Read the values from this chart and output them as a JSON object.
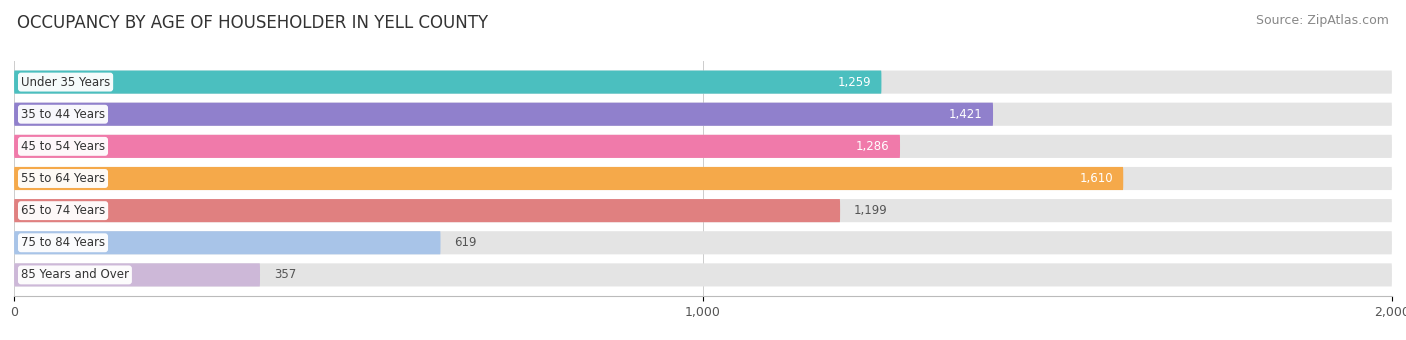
{
  "title": "OCCUPANCY BY AGE OF HOUSEHOLDER IN YELL COUNTY",
  "source": "Source: ZipAtlas.com",
  "categories": [
    "Under 35 Years",
    "35 to 44 Years",
    "45 to 54 Years",
    "55 to 64 Years",
    "65 to 74 Years",
    "75 to 84 Years",
    "85 Years and Over"
  ],
  "values": [
    1259,
    1421,
    1286,
    1610,
    1199,
    619,
    357
  ],
  "bar_colors": [
    "#4bbfbf",
    "#9080cc",
    "#f07aaa",
    "#f5a94a",
    "#e08080",
    "#a8c4e8",
    "#cdb8d8"
  ],
  "label_colors": [
    "white",
    "white",
    "white",
    "white",
    "dark",
    "dark",
    "dark"
  ],
  "xlim": [
    0,
    2000
  ],
  "xticks": [
    0,
    1000,
    2000
  ],
  "bar_background": "#e4e4e4",
  "title_fontsize": 12,
  "source_fontsize": 9,
  "figsize": [
    14.06,
    3.4
  ],
  "dpi": 100
}
